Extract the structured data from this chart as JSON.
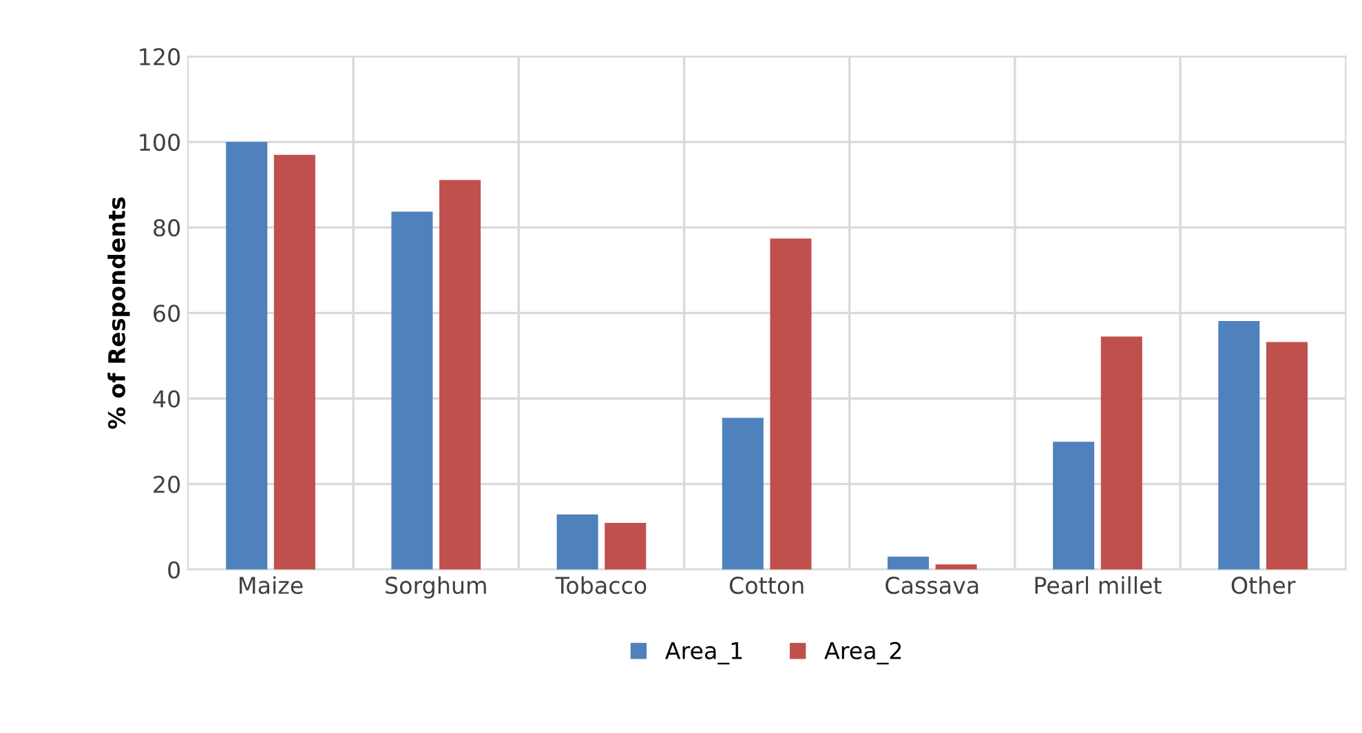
{
  "chart_data": {
    "type": "bar",
    "ylabel": "% of Respondents",
    "categories": [
      "Maize",
      "Sorghum",
      "Tobacco",
      "Cotton",
      "Cassava",
      "Pearl millet",
      "Other"
    ],
    "series": [
      {
        "name": "Area_1",
        "color": "#4f81bd",
        "values": [
          100,
          83.7,
          12.9,
          35.5,
          3.0,
          29.9,
          58.1
        ]
      },
      {
        "name": "Area_2",
        "color": "#c0504d",
        "values": [
          97,
          91.1,
          10.9,
          77.4,
          1.2,
          54.5,
          53.2
        ]
      }
    ],
    "ylim": [
      0,
      120
    ],
    "yticks": [
      0,
      20,
      40,
      60,
      80,
      100,
      120
    ],
    "grid": true,
    "legend": "bottom"
  }
}
